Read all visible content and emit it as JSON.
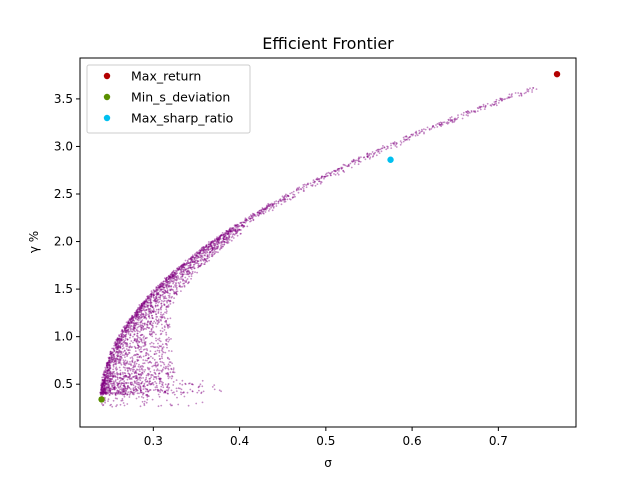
{
  "chart_data": {
    "type": "scatter",
    "title": "Efficient Frontier",
    "xlabel": "σ",
    "ylabel": "γ %",
    "xlim": [
      0.215,
      0.79
    ],
    "ylim": [
      0.05,
      3.93
    ],
    "xticks": [
      0.3,
      0.4,
      0.5,
      0.6,
      0.7
    ],
    "xtick_labels": [
      "0.3",
      "0.4",
      "0.5",
      "0.6",
      "0.7"
    ],
    "yticks": [
      0.5,
      1.0,
      1.5,
      2.0,
      2.5,
      3.0,
      3.5
    ],
    "ytick_labels": [
      "0.5",
      "1.0",
      "1.5",
      "2.0",
      "2.5",
      "3.0",
      "3.5"
    ],
    "grid": false,
    "legend_position": "upper-left",
    "cloud": {
      "name": "portfolios",
      "color": "#800080",
      "frontier_vertex": [
        0.24,
        0.33
      ],
      "min_return": 0.26,
      "max_point": [
        0.74,
        3.62
      ]
    },
    "series": [
      {
        "name": "Max_return",
        "color": "#b30000",
        "x": [
          0.768
        ],
        "y": [
          3.76
        ]
      },
      {
        "name": "Min_s_deviation",
        "color": "#5a8f00",
        "x": [
          0.24
        ],
        "y": [
          0.34
        ]
      },
      {
        "name": "Max_sharp_ratio",
        "color": "#00c0f0",
        "x": [
          0.575
        ],
        "y": [
          2.86
        ]
      }
    ]
  }
}
